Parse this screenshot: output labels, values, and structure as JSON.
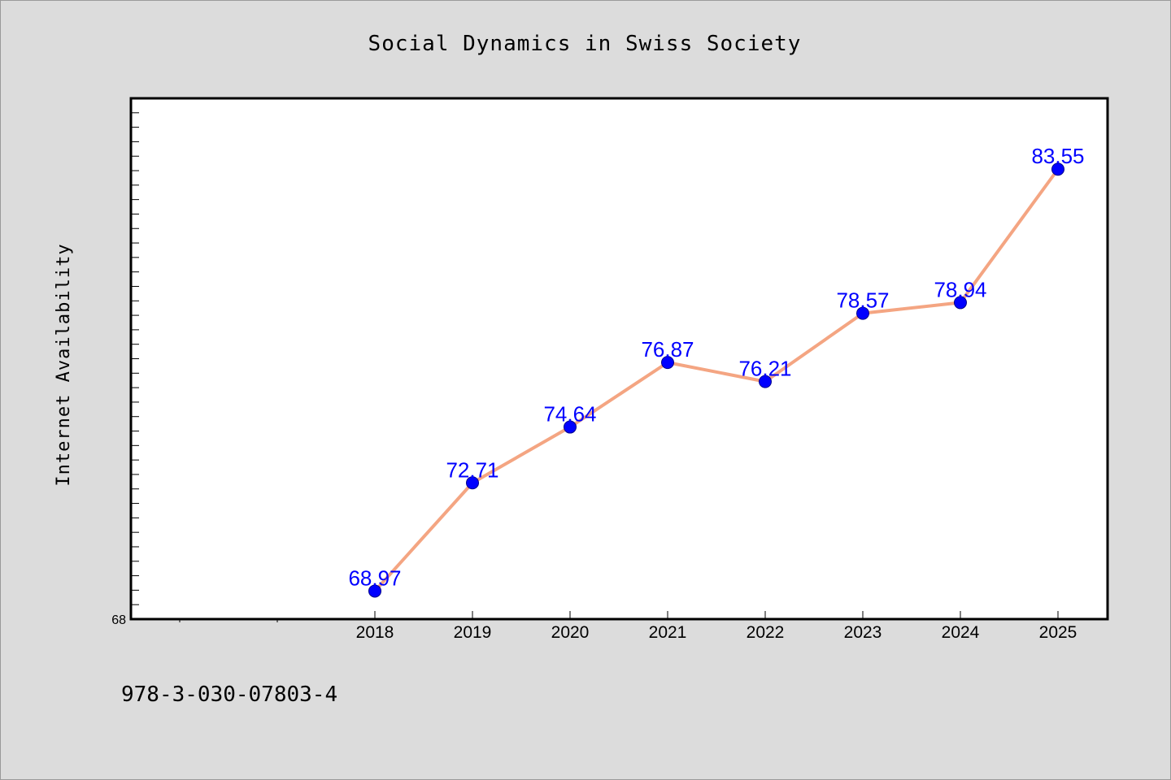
{
  "figure": {
    "background": "#dcdcdc",
    "footer_text": "978-3-030-07803-4"
  },
  "chart_data": {
    "type": "line",
    "title": "Social Dynamics in Swiss Society",
    "xlabel": "",
    "ylabel": "Internet Availability",
    "categories": [
      "2018",
      "2019",
      "2020",
      "2021",
      "2022",
      "2023",
      "2024",
      "2025"
    ],
    "series": [
      {
        "values": [
          68.97,
          72.71,
          74.64,
          76.87,
          76.21,
          78.57,
          78.94,
          83.55
        ],
        "data_labels": [
          "68.97",
          "72.71",
          "74.64",
          "76.87",
          "76.21",
          "78.57",
          "78.94",
          "83.55"
        ],
        "line_color": "#f4a582",
        "marker_color": "#0000ff"
      }
    ],
    "ylim": [
      68,
      86
    ],
    "xlim_categories_before": 2,
    "ytick_labels": [
      "68"
    ],
    "grid": false,
    "legend": "none",
    "plot_background": "#ffffff"
  }
}
